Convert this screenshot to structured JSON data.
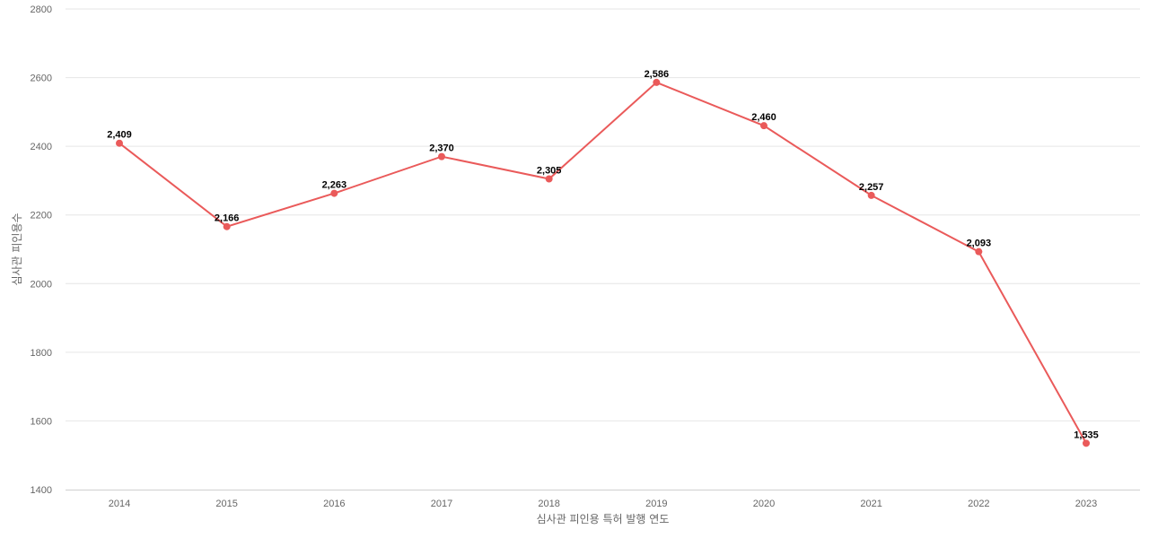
{
  "chart_data": {
    "type": "line",
    "categories": [
      "2014",
      "2015",
      "2016",
      "2017",
      "2018",
      "2019",
      "2020",
      "2021",
      "2022",
      "2023"
    ],
    "series": [
      {
        "values": [
          2409,
          2166,
          2263,
          2370,
          2305,
          2586,
          2460,
          2257,
          2093,
          1535
        ],
        "data_labels": [
          "2,409",
          "2,166",
          "2,263",
          "2,370",
          "2,305",
          "2,586",
          "2,460",
          "2,257",
          "2,093",
          "1,535"
        ],
        "color": "#ea5a5a"
      }
    ],
    "xlabel": "심사관 피인용 특허 발행 연도",
    "ylabel": "심사관 피인용수",
    "ylim": [
      1400,
      2800
    ],
    "yticks": [
      "1400",
      "1600",
      "1800",
      "2000",
      "2200",
      "2400",
      "2600",
      "2800"
    ],
    "grid": true,
    "legend": "none"
  }
}
